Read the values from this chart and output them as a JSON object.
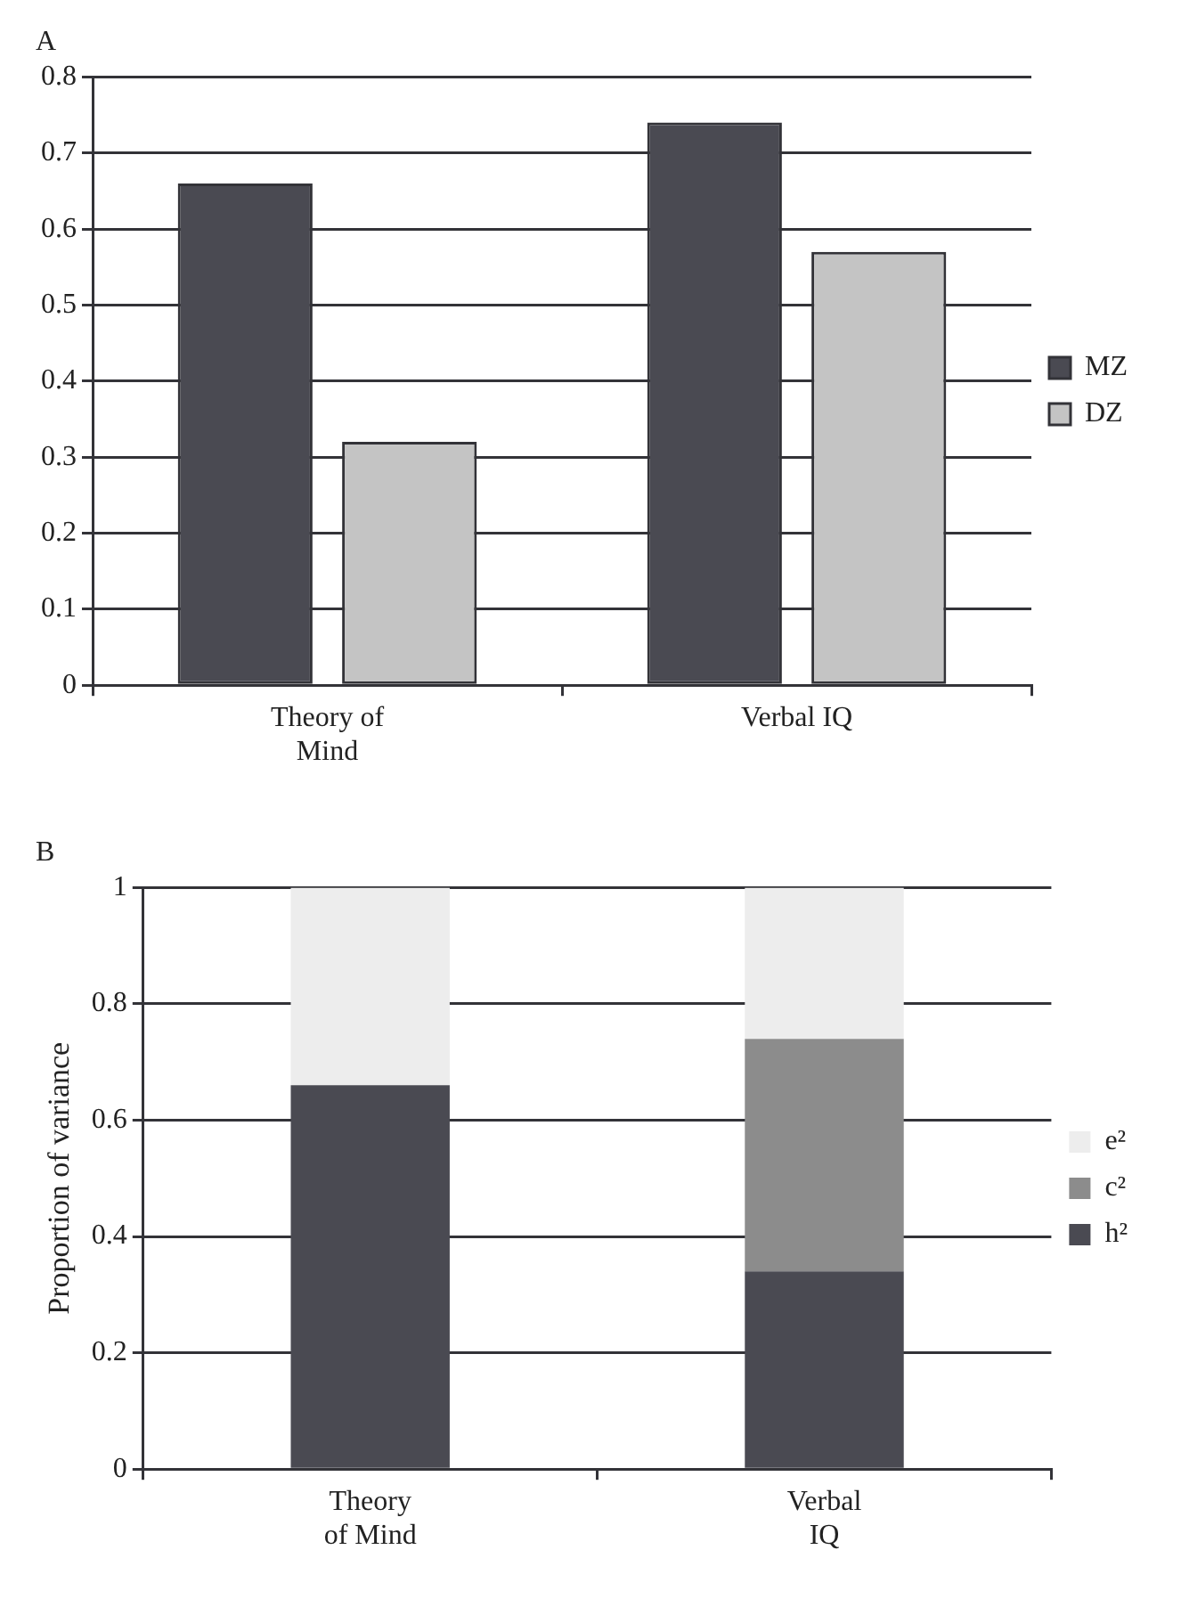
{
  "chart_data": [
    {
      "type": "bar",
      "title": "A",
      "categories": [
        "Theory of Mind",
        "Verbal IQ"
      ],
      "series": [
        {
          "name": "MZ",
          "color": "#4a4a52",
          "values": [
            0.66,
            0.74
          ]
        },
        {
          "name": "DZ",
          "color": "#c4c4c4",
          "values": [
            0.32,
            0.57
          ]
        }
      ],
      "ylim": [
        0,
        0.8
      ],
      "yticks": [
        0,
        0.1,
        0.2,
        0.3,
        0.4,
        0.5,
        0.6,
        0.7,
        0.8
      ],
      "grid": "y",
      "legend": "right"
    },
    {
      "type": "bar",
      "title": "B",
      "ylabel": "Proportion of variance",
      "categories": [
        "Theory of Mind",
        "Verbal IQ"
      ],
      "stacked": true,
      "series": [
        {
          "name": "h²",
          "color": "#4a4a52",
          "values": [
            0.66,
            0.34
          ]
        },
        {
          "name": "c²",
          "color": "#8c8c8c",
          "values": [
            0,
            0.4
          ]
        },
        {
          "name": "e²",
          "color": "#ededed",
          "values": [
            0.34,
            0.26
          ]
        }
      ],
      "ylim": [
        0,
        1
      ],
      "yticks": [
        0,
        0.2,
        0.4,
        0.6,
        0.8,
        1
      ],
      "grid": "y",
      "legend": "right"
    }
  ]
}
